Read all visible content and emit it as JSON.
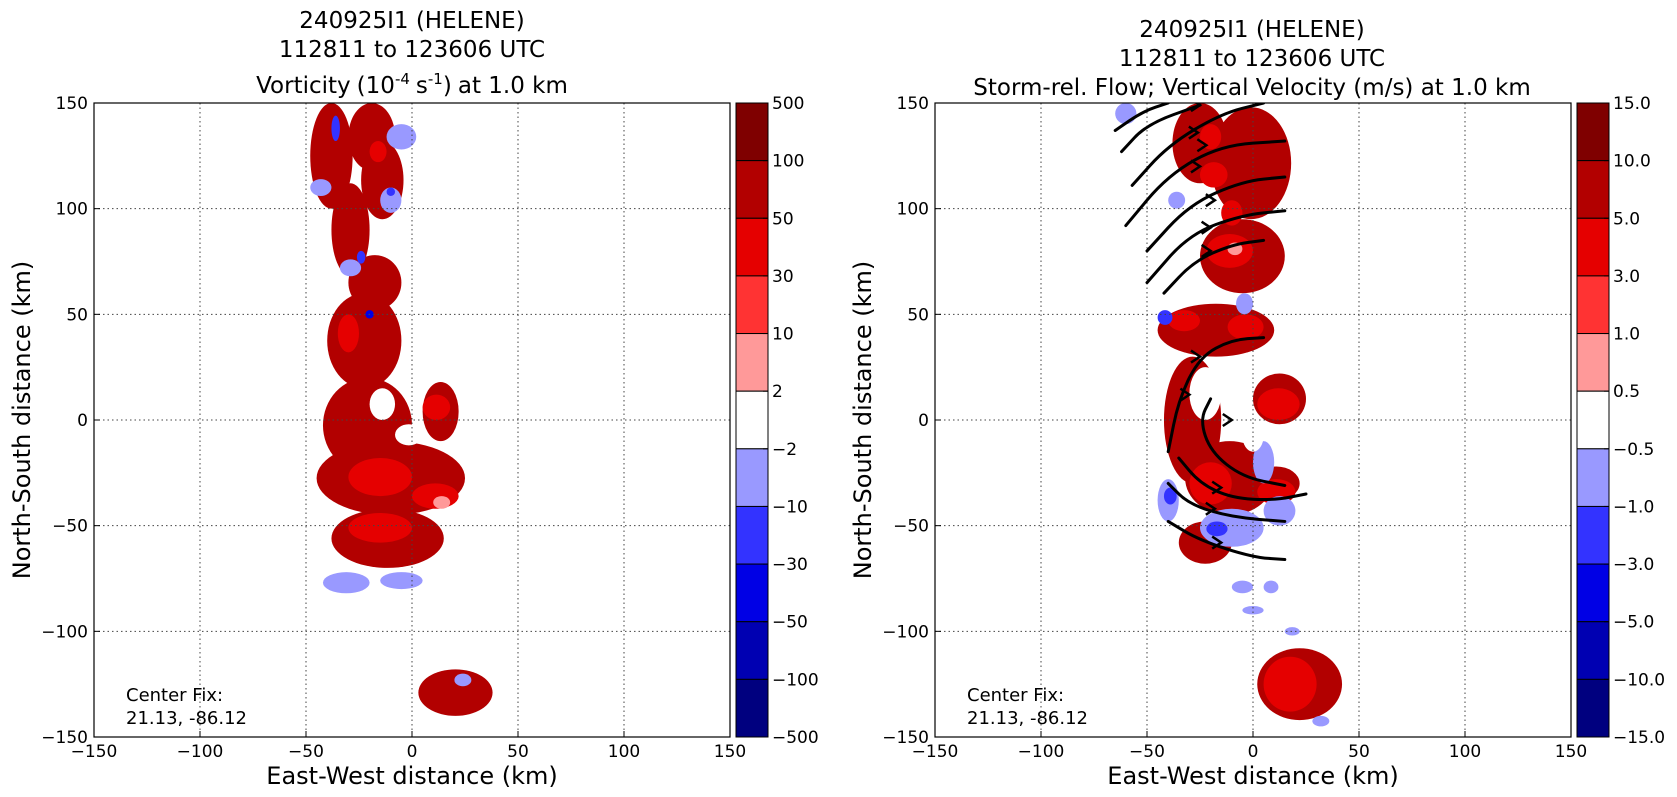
{
  "chart_data": [
    {
      "type": "heatmap",
      "title_lines": [
        "240925I1 (HELENE)",
        "112811 to 123606 UTC"
      ],
      "title_field": "Vorticity",
      "title_unit_base": "10",
      "title_unit_exp": "-4",
      "title_unit_s": "s",
      "title_unit_sexp": "-1",
      "title_level": "at 1.0 km",
      "xlabel": "East-West distance (km)",
      "ylabel": "North-South distance (km)",
      "xlim": [
        -150,
        150
      ],
      "ylim": [
        -150,
        150
      ],
      "xticks": [
        "−150",
        "−100",
        "−50",
        "0",
        "50",
        "100",
        "150"
      ],
      "yticks": [
        "−150",
        "−100",
        "−50",
        "0",
        "50",
        "100",
        "150"
      ],
      "grid": true,
      "center_fix_label": "Center Fix:",
      "center_fix_value": "21.13, -86.12",
      "colorbar_labels": [
        "500",
        "100",
        "50",
        "30",
        "10",
        "2",
        "−2",
        "−10",
        "−30",
        "−50",
        "−100",
        "−500"
      ],
      "colorbar_colors": [
        "#7f0000",
        "#b20000",
        "#e50000",
        "#ff3333",
        "#ff9999",
        "#ffffff",
        "#9999ff",
        "#3333ff",
        "#0000e5",
        "#0000b2",
        "#00007f"
      ],
      "blobs": [
        {
          "x": [
            -48,
            -28
          ],
          "y": [
            100,
            150
          ],
          "c": 1
        },
        {
          "x": [
            -30,
            -8
          ],
          "y": [
            118,
            150
          ],
          "c": 1
        },
        {
          "x": [
            -38,
            -20
          ],
          "y": [
            68,
            112
          ],
          "c": 1
        },
        {
          "x": [
            -24,
            -4
          ],
          "y": [
            95,
            132
          ],
          "c": 1
        },
        {
          "x": [
            -30,
            -5
          ],
          "y": [
            52,
            78
          ],
          "c": 1
        },
        {
          "x": [
            -40,
            -5
          ],
          "y": [
            15,
            60
          ],
          "c": 1
        },
        {
          "x": [
            -42,
            0
          ],
          "y": [
            -25,
            20
          ],
          "c": 1
        },
        {
          "x": [
            -45,
            25
          ],
          "y": [
            -45,
            -10
          ],
          "c": 1
        },
        {
          "x": [
            -38,
            15
          ],
          "y": [
            -70,
            -42
          ],
          "c": 1
        },
        {
          "x": [
            5,
            22
          ],
          "y": [
            -10,
            18
          ],
          "c": 1
        },
        {
          "x": [
            3,
            38
          ],
          "y": [
            -140,
            -118
          ],
          "c": 1
        },
        {
          "x": [
            -20,
            -12
          ],
          "y": [
            122,
            132
          ],
          "c": 2
        },
        {
          "x": [
            -35,
            -25
          ],
          "y": [
            32,
            50
          ],
          "c": 2
        },
        {
          "x": [
            -30,
            0
          ],
          "y": [
            -36,
            -18
          ],
          "c": 2
        },
        {
          "x": [
            0,
            22
          ],
          "y": [
            -42,
            -30
          ],
          "c": 2
        },
        {
          "x": [
            -30,
            0
          ],
          "y": [
            -58,
            -44
          ],
          "c": 2
        },
        {
          "x": [
            5,
            18
          ],
          "y": [
            0,
            12
          ],
          "c": 2
        },
        {
          "x": [
            10,
            18
          ],
          "y": [
            -42,
            -36
          ],
          "c": 4
        },
        {
          "x": [
            -48,
            -38
          ],
          "y": [
            106,
            114
          ],
          "c": 6
        },
        {
          "x": [
            -34,
            -24
          ],
          "y": [
            68,
            76
          ],
          "c": 6
        },
        {
          "x": [
            -15,
            -5
          ],
          "y": [
            98,
            110
          ],
          "c": 6
        },
        {
          "x": [
            -12,
            2
          ],
          "y": [
            128,
            140
          ],
          "c": 6
        },
        {
          "x": [
            -42,
            -20
          ],
          "y": [
            -82,
            -72
          ],
          "c": 6
        },
        {
          "x": [
            -15,
            5
          ],
          "y": [
            -80,
            -72
          ],
          "c": 6
        },
        {
          "x": [
            20,
            28
          ],
          "y": [
            -126,
            -120
          ],
          "c": 6
        },
        {
          "x": [
            -38,
            -34
          ],
          "y": [
            132,
            144
          ],
          "c": 7
        },
        {
          "x": [
            -26,
            -22
          ],
          "y": [
            74,
            80
          ],
          "c": 7
        },
        {
          "x": [
            -12,
            -8
          ],
          "y": [
            106,
            110
          ],
          "c": 7
        },
        {
          "x": [
            -22,
            -18
          ],
          "y": [
            48,
            52
          ],
          "c": 8
        }
      ],
      "white_holes": [
        {
          "x": [
            -20,
            -8
          ],
          "y": [
            0,
            15
          ]
        },
        {
          "x": [
            -8,
            5
          ],
          "y": [
            -12,
            -2
          ]
        }
      ]
    },
    {
      "type": "heatmap",
      "title_lines": [
        "240925I1 (HELENE)",
        "112811 to 123606 UTC",
        "Storm-rel. Flow; Vertical Velocity (m/s) at 1.0 km"
      ],
      "xlabel": "East-West distance (km)",
      "ylabel": "North-South distance (km)",
      "xlim": [
        -150,
        150
      ],
      "ylim": [
        -150,
        150
      ],
      "xticks": [
        "−150",
        "−100",
        "−50",
        "0",
        "50",
        "100",
        "150"
      ],
      "yticks": [
        "−150",
        "−100",
        "−50",
        "0",
        "50",
        "100",
        "150"
      ],
      "grid": true,
      "center_fix_label": "Center Fix:",
      "center_fix_value": "21.13, -86.12",
      "colorbar_labels": [
        "15.0",
        "10.0",
        "5.0",
        "3.0",
        "1.0",
        "0.5",
        "−0.5",
        "−1.0",
        "−3.0",
        "−5.0",
        "−10.0",
        "−15.0"
      ],
      "colorbar_colors": [
        "#7f0000",
        "#b20000",
        "#e50000",
        "#ff3333",
        "#ff9999",
        "#ffffff",
        "#9999ff",
        "#3333ff",
        "#0000e5",
        "#0000b2",
        "#00007f"
      ],
      "blobs": [
        {
          "x": [
            -38,
            -12
          ],
          "y": [
            112,
            150
          ],
          "c": 1
        },
        {
          "x": [
            -20,
            18
          ],
          "y": [
            95,
            148
          ],
          "c": 1
        },
        {
          "x": [
            -25,
            15
          ],
          "y": [
            60,
            95
          ],
          "c": 1
        },
        {
          "x": [
            -45,
            10
          ],
          "y": [
            30,
            55
          ],
          "c": 1
        },
        {
          "x": [
            -42,
            -15
          ],
          "y": [
            -30,
            30
          ],
          "c": 1
        },
        {
          "x": [
            -32,
            10
          ],
          "y": [
            -45,
            -10
          ],
          "c": 1
        },
        {
          "x": [
            -35,
            -10
          ],
          "y": [
            -68,
            -48
          ],
          "c": 1
        },
        {
          "x": [
            0,
            22
          ],
          "y": [
            -38,
            -22
          ],
          "c": 1
        },
        {
          "x": [
            0,
            25
          ],
          "y": [
            -2,
            22
          ],
          "c": 1
        },
        {
          "x": [
            2,
            42
          ],
          "y": [
            -142,
            -108
          ],
          "c": 1
        },
        {
          "x": [
            -25,
            -15
          ],
          "y": [
            128,
            140
          ],
          "c": 2
        },
        {
          "x": [
            -25,
            -12
          ],
          "y": [
            110,
            122
          ],
          "c": 2
        },
        {
          "x": [
            -15,
            -5
          ],
          "y": [
            92,
            104
          ],
          "c": 2
        },
        {
          "x": [
            -22,
            0
          ],
          "y": [
            72,
            88
          ],
          "c": 2
        },
        {
          "x": [
            -40,
            -25
          ],
          "y": [
            42,
            52
          ],
          "c": 2
        },
        {
          "x": [
            -12,
            5
          ],
          "y": [
            38,
            50
          ],
          "c": 2
        },
        {
          "x": [
            -30,
            -10
          ],
          "y": [
            -40,
            -20
          ],
          "c": 2
        },
        {
          "x": [
            2,
            20
          ],
          "y": [
            -40,
            -28
          ],
          "c": 2
        },
        {
          "x": [
            2,
            22
          ],
          "y": [
            0,
            15
          ],
          "c": 2
        },
        {
          "x": [
            5,
            30
          ],
          "y": [
            -138,
            -112
          ],
          "c": 2
        },
        {
          "x": [
            -12,
            -5
          ],
          "y": [
            78,
            84
          ],
          "c": 4
        },
        {
          "x": [
            -45,
            -35
          ],
          "y": [
            -48,
            -28
          ],
          "c": 6
        },
        {
          "x": [
            -25,
            5
          ],
          "y": [
            -60,
            -42
          ],
          "c": 6
        },
        {
          "x": [
            5,
            20
          ],
          "y": [
            -50,
            -36
          ],
          "c": 6
        },
        {
          "x": [
            0,
            10
          ],
          "y": [
            -30,
            -10
          ],
          "c": 6
        },
        {
          "x": [
            -8,
            0
          ],
          "y": [
            50,
            60
          ],
          "c": 6
        },
        {
          "x": [
            -40,
            -32
          ],
          "y": [
            100,
            108
          ],
          "c": 6
        },
        {
          "x": [
            -45,
            -38
          ],
          "y": [
            45,
            52
          ],
          "c": 7
        },
        {
          "x": [
            -42,
            -36
          ],
          "y": [
            -40,
            -32
          ],
          "c": 7
        },
        {
          "x": [
            -22,
            -12
          ],
          "y": [
            -55,
            -48
          ],
          "c": 7
        },
        {
          "x": [
            -65,
            -55
          ],
          "y": [
            140,
            150
          ],
          "c": 6
        },
        {
          "x": [
            -10,
            0
          ],
          "y": [
            -82,
            -76
          ],
          "c": 6
        },
        {
          "x": [
            5,
            12
          ],
          "y": [
            -82,
            -76
          ],
          "c": 6
        },
        {
          "x": [
            -5,
            5
          ],
          "y": [
            -92,
            -88
          ],
          "c": 6
        },
        {
          "x": [
            15,
            22
          ],
          "y": [
            -102,
            -98
          ],
          "c": 6
        },
        {
          "x": [
            28,
            36
          ],
          "y": [
            -145,
            -140
          ],
          "c": 6
        }
      ],
      "white_holes": [
        {
          "x": [
            -30,
            -15
          ],
          "y": [
            0,
            25
          ]
        },
        {
          "x": [
            -5,
            5
          ],
          "y": [
            -15,
            0
          ]
        }
      ],
      "streamlines": [
        [
          [
            -62,
            127
          ],
          [
            -50,
            140
          ],
          [
            -25,
            149
          ]
        ],
        [
          [
            -65,
            137
          ],
          [
            -52,
            146
          ],
          [
            -40,
            150
          ]
        ],
        [
          [
            -57,
            111
          ],
          [
            -40,
            130
          ],
          [
            -15,
            145
          ],
          [
            5,
            150
          ]
        ],
        [
          [
            -60,
            92
          ],
          [
            -40,
            116
          ],
          [
            -15,
            130
          ],
          [
            15,
            132
          ]
        ],
        [
          [
            -50,
            80
          ],
          [
            -30,
            102
          ],
          [
            -5,
            113
          ],
          [
            15,
            115
          ]
        ],
        [
          [
            -50,
            65
          ],
          [
            -30,
            88
          ],
          [
            -5,
            97
          ],
          [
            15,
            99
          ]
        ],
        [
          [
            -42,
            60
          ],
          [
            -28,
            75
          ],
          [
            -10,
            83
          ],
          [
            5,
            85
          ]
        ],
        [
          [
            5,
            39
          ],
          [
            -10,
            38
          ],
          [
            -25,
            30
          ],
          [
            -35,
            10
          ],
          [
            -40,
            -15
          ]
        ],
        [
          [
            -20,
            10
          ],
          [
            -25,
            0
          ],
          [
            -20,
            -15
          ],
          [
            -5,
            -27
          ],
          [
            15,
            -31
          ]
        ],
        [
          [
            -35,
            -18
          ],
          [
            -25,
            -30
          ],
          [
            -10,
            -37
          ],
          [
            10,
            -38
          ],
          [
            25,
            -35
          ]
        ],
        [
          [
            -40,
            -30
          ],
          [
            -30,
            -40
          ],
          [
            -10,
            -46
          ],
          [
            15,
            -48
          ]
        ],
        [
          [
            -40,
            -48
          ],
          [
            -25,
            -57
          ],
          [
            0,
            -65
          ],
          [
            15,
            -66
          ]
        ]
      ],
      "arrow_markers": [
        [
          -25,
          149
        ],
        [
          -26,
          136
        ],
        [
          -22,
          130
        ],
        [
          -25,
          120
        ],
        [
          -18,
          104
        ],
        [
          -20,
          91
        ],
        [
          -20,
          80
        ],
        [
          -25,
          30
        ],
        [
          -30,
          12
        ],
        [
          -15,
          -32
        ],
        [
          -18,
          -42
        ],
        [
          -15,
          -58
        ],
        [
          -10,
          0
        ]
      ]
    }
  ]
}
